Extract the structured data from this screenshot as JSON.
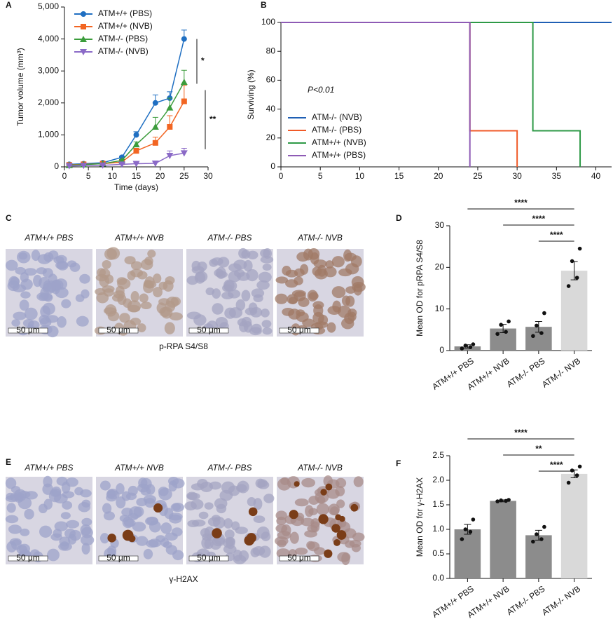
{
  "chart_data": [
    {
      "type": "line",
      "panel": "A",
      "xlabel": "Time (days)",
      "ylabel": "Tumor volume (mm³)",
      "x": [
        1,
        4,
        8,
        12,
        15,
        19,
        22,
        25
      ],
      "xlim": [
        0,
        30
      ],
      "xticks": [
        0,
        5,
        10,
        15,
        20,
        25,
        30
      ],
      "ylim": [
        0,
        5000
      ],
      "yticks": [
        0,
        {
          "value": 1000,
          "label": "1,000"
        },
        {
          "value": 2000,
          "label": "2,000"
        },
        {
          "value": 3000,
          "label": "3,000"
        },
        {
          "value": 4000,
          "label": "4,000"
        },
        {
          "value": 5000,
          "label": "5,000"
        }
      ],
      "legend": "upper left",
      "series": [
        {
          "name": "ATM+/+ (PBS)",
          "color": "#1f6fc2",
          "marker": "circle",
          "values": [
            80,
            100,
            130,
            300,
            1000,
            2000,
            2150,
            4000
          ],
          "errors": [
            20,
            20,
            20,
            40,
            100,
            250,
            200,
            280
          ]
        },
        {
          "name": "ATM+/+ (NVB)",
          "color": "#f26522",
          "marker": "square",
          "values": [
            60,
            80,
            100,
            150,
            500,
            750,
            1250,
            2050
          ],
          "errors": [
            15,
            15,
            15,
            30,
            80,
            180,
            350,
            500
          ]
        },
        {
          "name": "ATM-/- (PBS)",
          "color": "#3b9c3b",
          "marker": "triangle",
          "values": [
            50,
            70,
            100,
            200,
            700,
            1250,
            1850,
            2650
          ],
          "errors": [
            15,
            15,
            20,
            30,
            80,
            300,
            300,
            370
          ]
        },
        {
          "name": "ATM-/- (NVB)",
          "color": "#8b6ac7",
          "marker": "triangle-down",
          "values": [
            30,
            40,
            50,
            80,
            100,
            110,
            350,
            430
          ],
          "errors": [
            10,
            10,
            10,
            20,
            30,
            40,
            150,
            150
          ]
        }
      ],
      "annotations": [
        "*",
        "**"
      ]
    },
    {
      "type": "line",
      "panel": "B",
      "ylabel": "Surviving (%)",
      "xlim": [
        0,
        42
      ],
      "xticks": [
        0,
        5,
        10,
        15,
        20,
        25,
        30,
        35,
        40
      ],
      "ylim": [
        0,
        100
      ],
      "yticks": [
        0,
        20,
        40,
        60,
        80,
        100
      ],
      "legend": "lower left",
      "series": [
        {
          "name": "ATM-/- (NVB)",
          "color": "#1f5fb4",
          "x": [
            0,
            42
          ],
          "values": [
            100,
            100
          ]
        },
        {
          "name": "ATM-/- (PBS)",
          "color": "#f05a28",
          "x": [
            0,
            24,
            24,
            30,
            30
          ],
          "values": [
            100,
            100,
            25,
            25,
            0
          ]
        },
        {
          "name": "ATM+/+ (NVB)",
          "color": "#2e9a47",
          "x": [
            0,
            32,
            32,
            38,
            38
          ],
          "values": [
            100,
            100,
            25,
            25,
            0
          ]
        },
        {
          "name": "ATM+/+ (PBS)",
          "color": "#8e5bb5",
          "x": [
            0,
            24,
            24
          ],
          "values": [
            100,
            100,
            0
          ]
        }
      ],
      "annotations": [
        "P<0.01"
      ]
    },
    {
      "type": "bar",
      "panel": "D",
      "ylabel": "Mean OD for pRPA S4/S8",
      "categories": [
        "ATM+/+ PBS",
        "ATM+/+ NVB",
        "ATM-/- PBS",
        "ATM-/- NVB"
      ],
      "values": [
        1.0,
        5.3,
        5.7,
        19.2
      ],
      "errors": [
        0.4,
        1.0,
        1.3,
        2.2
      ],
      "points": [
        [
          0.5,
          0.8,
          1.2,
          1.5
        ],
        [
          4.0,
          4.5,
          6.2,
          7.0
        ],
        [
          3.5,
          4.2,
          6.0,
          9.0
        ],
        [
          15.5,
          17.5,
          21.5,
          24.5
        ]
      ],
      "colors": [
        "#8c8c8c",
        "#8c8c8c",
        "#8c8c8c",
        "#d9d9d9"
      ],
      "ylim": [
        0,
        30
      ],
      "yticks": [
        0,
        10,
        20,
        30
      ],
      "significance": [
        "****",
        "****",
        "****"
      ]
    },
    {
      "type": "bar",
      "panel": "F",
      "ylabel": "Mean OD for γ-H2AX",
      "categories": [
        "ATM+/+ PBS",
        "ATM+/+ NVB",
        "ATM-/- PBS",
        "ATM-/- NVB"
      ],
      "values": [
        1.0,
        1.58,
        0.88,
        2.13
      ],
      "errors": [
        0.1,
        0.02,
        0.1,
        0.08
      ],
      "points": [
        [
          0.8,
          0.95,
          1.0,
          1.2
        ],
        [
          1.57,
          1.58,
          1.59,
          1.6
        ],
        [
          0.75,
          0.8,
          0.9,
          1.05
        ],
        [
          1.95,
          2.1,
          2.2,
          2.28
        ]
      ],
      "colors": [
        "#8c8c8c",
        "#8c8c8c",
        "#8c8c8c",
        "#d9d9d9"
      ],
      "ylim": [
        0,
        2.5
      ],
      "yticks": [
        {
          "value": 0,
          "label": "0.0"
        },
        {
          "value": 0.5,
          "label": "0.5"
        },
        {
          "value": 1,
          "label": "1.0"
        },
        {
          "value": 1.5,
          "label": "1.5"
        },
        {
          "value": 2,
          "label": "2.0"
        },
        {
          "value": 2.5,
          "label": "2.5"
        }
      ],
      "significance": [
        "****",
        "**",
        "****"
      ]
    }
  ],
  "image_panels": [
    {
      "panel": "C",
      "columns": [
        "ATM+/+ PBS",
        "ATM+/+ NVB",
        "ATM-/- PBS",
        "ATM-/- NVB"
      ],
      "caption": "p-RPA S4/S8",
      "scale_bar": "50 μm"
    },
    {
      "panel": "E",
      "columns": [
        "ATM+/+ PBS",
        "ATM+/+ NVB",
        "ATM-/- PBS",
        "ATM-/- NVB"
      ],
      "caption": "γ-H2AX",
      "scale_bar": "50 μm"
    }
  ]
}
